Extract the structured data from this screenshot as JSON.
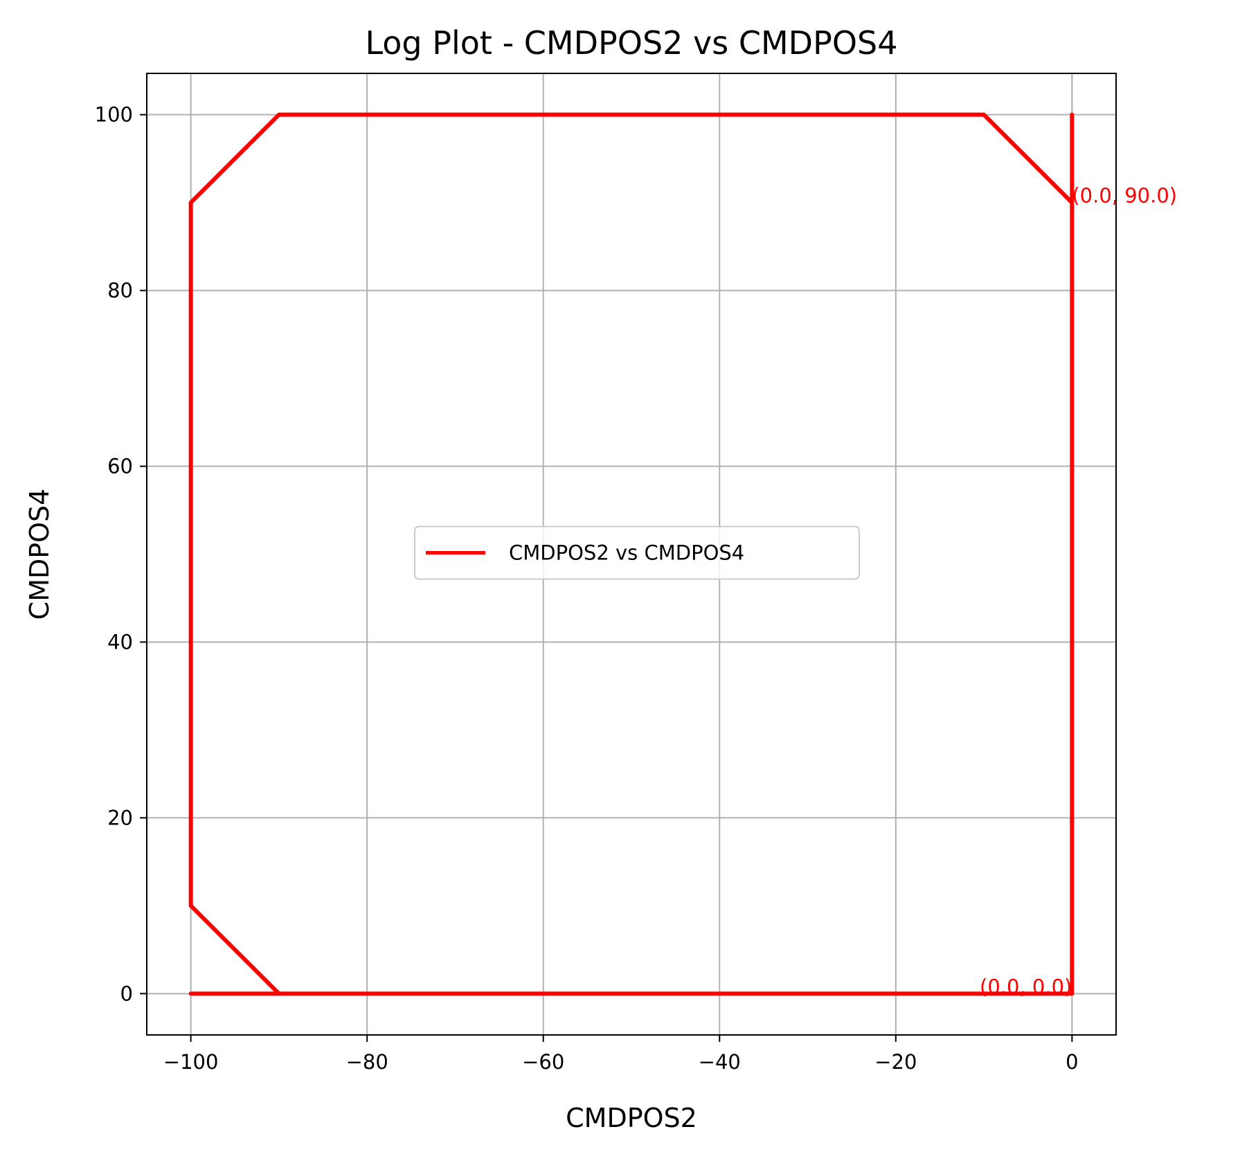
{
  "chart_data": {
    "type": "line",
    "title": "Log Plot - CMDPOS2 vs CMDPOS4",
    "xlabel": "CMDPOS2",
    "ylabel": "CMDPOS4",
    "xlim": [
      -105,
      5
    ],
    "ylim": [
      -4.7,
      104.7
    ],
    "xticks": [
      -100,
      -80,
      -60,
      -40,
      -20,
      0
    ],
    "xtick_labels": [
      "−100",
      "−80",
      "−60",
      "−40",
      "−20",
      "0"
    ],
    "yticks": [
      0,
      20,
      40,
      60,
      80,
      100
    ],
    "ytick_labels": [
      "0",
      "20",
      "40",
      "60",
      "80",
      "100"
    ],
    "grid": true,
    "legend_position": "center",
    "series": [
      {
        "name": "CMDPOS2 vs CMDPOS4",
        "color": "#ff0000",
        "x": [
          0,
          0,
          -10,
          -90,
          -100,
          -100,
          -90,
          -100,
          0,
          0
        ],
        "y": [
          100,
          90,
          100,
          100,
          90,
          10,
          0,
          0,
          0,
          100
        ]
      }
    ],
    "annotations": [
      {
        "text": "(0.0, 90.0)",
        "x": 0,
        "y": 90,
        "anchor": "start",
        "color": "#ff0000"
      },
      {
        "text": "(0.0, 0.0)",
        "x": 0,
        "y": 0,
        "anchor": "end",
        "color": "#ff0000"
      }
    ]
  }
}
